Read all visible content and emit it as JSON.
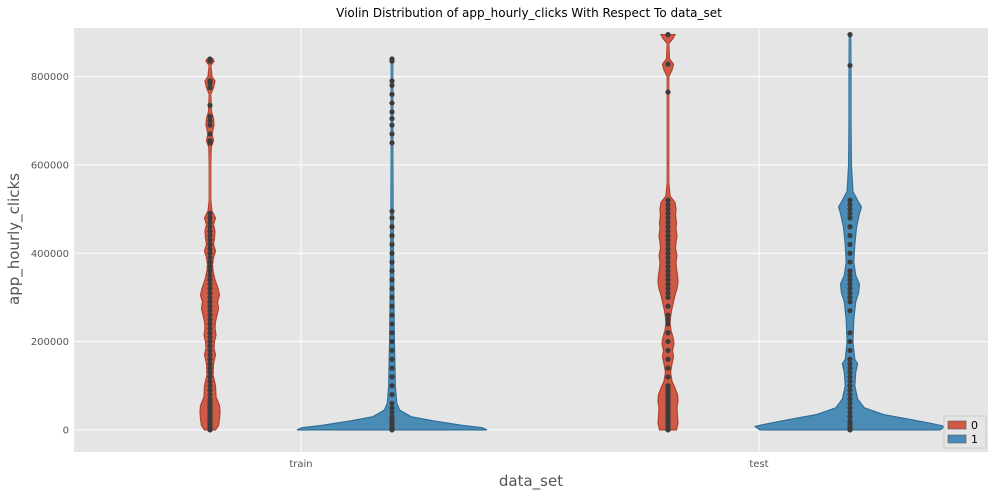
{
  "chart_data": {
    "type": "violin",
    "title": "Violin Distribution of app_hourly_clicks With Respect To data_set",
    "xlabel": "data_set",
    "ylabel": "app_hourly_clicks",
    "categories": [
      "train",
      "test"
    ],
    "ylim": [
      -50000,
      910000
    ],
    "yticks": [
      0,
      200000,
      400000,
      600000,
      800000
    ],
    "ytick_labels": [
      "0",
      "200000",
      "400000",
      "600000",
      "800000"
    ],
    "grid": true,
    "legend": {
      "placement": "bottom-right",
      "entries": [
        {
          "label": "0",
          "color": "#CF5A45"
        },
        {
          "label": "1",
          "color": "#4A8CB5"
        }
      ]
    },
    "colors": {
      "background": "#E5E5E5",
      "grid": "#FFFFFF",
      "point": "#3C3C3C"
    },
    "series": [
      {
        "name": "0",
        "color": "#CF5A45",
        "edge": "#B0412F",
        "violins": [
          {
            "category": "train",
            "range": [
              0,
              840000
            ],
            "profile": [
              [
                0,
                0.55
              ],
              [
                10000,
                0.85
              ],
              [
                25000,
                0.95
              ],
              [
                40000,
                1.0
              ],
              [
                55000,
                0.95
              ],
              [
                75000,
                0.6
              ],
              [
                100000,
                0.55
              ],
              [
                125000,
                0.3
              ],
              [
                150000,
                0.35
              ],
              [
                170000,
                0.55
              ],
              [
                185000,
                0.4
              ],
              [
                200000,
                0.45
              ],
              [
                215000,
                0.6
              ],
              [
                230000,
                0.5
              ],
              [
                245000,
                0.55
              ],
              [
                260000,
                0.7
              ],
              [
                275000,
                0.85
              ],
              [
                290000,
                0.75
              ],
              [
                305000,
                0.95
              ],
              [
                320000,
                0.8
              ],
              [
                340000,
                0.5
              ],
              [
                360000,
                0.3
              ],
              [
                375000,
                0.25
              ],
              [
                390000,
                0.35
              ],
              [
                405000,
                0.55
              ],
              [
                420000,
                0.35
              ],
              [
                435000,
                0.45
              ],
              [
                450000,
                0.5
              ],
              [
                465000,
                0.35
              ],
              [
                480000,
                0.55
              ],
              [
                495000,
                0.2
              ],
              [
                520000,
                0.08
              ],
              [
                560000,
                0.03
              ],
              [
                600000,
                0.05
              ],
              [
                640000,
                0.12
              ],
              [
                655000,
                0.35
              ],
              [
                670000,
                0.2
              ],
              [
                690000,
                0.4
              ],
              [
                705000,
                0.35
              ],
              [
                720000,
                0.15
              ],
              [
                760000,
                0.05
              ],
              [
                775000,
                0.35
              ],
              [
                790000,
                0.5
              ],
              [
                800000,
                0.2
              ],
              [
                825000,
                0.05
              ],
              [
                835000,
                0.4
              ],
              [
                840000,
                0.3
              ]
            ],
            "points": [
              0,
              1000,
              2000,
              3000,
              5000,
              7000,
              9000,
              12000,
              15000,
              18000,
              22000,
              26000,
              30000,
              35000,
              40000,
              45000,
              50000,
              55000,
              60000,
              65000,
              70000,
              80000,
              90000,
              100000,
              110000,
              120000,
              130000,
              140000,
              150000,
              160000,
              170000,
              180000,
              190000,
              200000,
              210000,
              220000,
              230000,
              240000,
              250000,
              260000,
              270000,
              280000,
              290000,
              300000,
              310000,
              320000,
              330000,
              340000,
              350000,
              360000,
              370000,
              380000,
              390000,
              400000,
              410000,
              420000,
              430000,
              440000,
              450000,
              460000,
              470000,
              480000,
              490000,
              650000,
              655000,
              670000,
              690000,
              700000,
              710000,
              735000,
              775000,
              785000,
              790000,
              835000,
              840000
            ]
          },
          {
            "category": "test",
            "range": [
              0,
              895000
            ],
            "profile": [
              [
                0,
                0.85
              ],
              [
                15000,
                1.0
              ],
              [
                30000,
                0.95
              ],
              [
                50000,
                0.9
              ],
              [
                65000,
                1.0
              ],
              [
                80000,
                0.95
              ],
              [
                95000,
                0.7
              ],
              [
                110000,
                0.4
              ],
              [
                130000,
                0.25
              ],
              [
                150000,
                0.4
              ],
              [
                165000,
                0.55
              ],
              [
                180000,
                0.45
              ],
              [
                195000,
                0.6
              ],
              [
                210000,
                0.5
              ],
              [
                225000,
                0.3
              ],
              [
                240000,
                0.2
              ],
              [
                255000,
                0.25
              ],
              [
                270000,
                0.35
              ],
              [
                290000,
                0.55
              ],
              [
                305000,
                0.7
              ],
              [
                320000,
                0.9
              ],
              [
                335000,
                1.0
              ],
              [
                350000,
                0.95
              ],
              [
                365000,
                0.85
              ],
              [
                380000,
                0.8
              ],
              [
                395000,
                0.9
              ],
              [
                410000,
                0.75
              ],
              [
                425000,
                0.8
              ],
              [
                440000,
                0.9
              ],
              [
                455000,
                0.8
              ],
              [
                470000,
                0.85
              ],
              [
                485000,
                0.75
              ],
              [
                500000,
                0.8
              ],
              [
                515000,
                0.7
              ],
              [
                530000,
                0.2
              ],
              [
                560000,
                0.03
              ],
              [
                700000,
                0.02
              ],
              [
                800000,
                0.05
              ],
              [
                815000,
                0.4
              ],
              [
                828000,
                0.55
              ],
              [
                840000,
                0.15
              ],
              [
                875000,
                0.05
              ],
              [
                886000,
                0.5
              ],
              [
                895000,
                0.7
              ]
            ],
            "points": [
              0,
              1000,
              2000,
              3000,
              5000,
              8000,
              11000,
              15000,
              20000,
              25000,
              30000,
              35000,
              40000,
              45000,
              50000,
              55000,
              60000,
              65000,
              70000,
              75000,
              80000,
              85000,
              90000,
              95000,
              100000,
              120000,
              140000,
              160000,
              180000,
              200000,
              220000,
              240000,
              250000,
              260000,
              280000,
              300000,
              310000,
              320000,
              330000,
              340000,
              350000,
              360000,
              370000,
              380000,
              390000,
              400000,
              410000,
              420000,
              430000,
              440000,
              450000,
              460000,
              470000,
              480000,
              490000,
              500000,
              510000,
              520000,
              765000,
              828000,
              895000
            ]
          }
        ]
      },
      {
        "name": "1",
        "color": "#4A8CB5",
        "edge": "#2F6F98",
        "violins": [
          {
            "category": "train",
            "range": [
              0,
              840000
            ],
            "profile": [
              [
                0,
                1.0
              ],
              [
                5000,
                0.95
              ],
              [
                10000,
                0.75
              ],
              [
                20000,
                0.45
              ],
              [
                30000,
                0.2
              ],
              [
                45000,
                0.08
              ],
              [
                60000,
                0.05
              ],
              [
                100000,
                0.035
              ],
              [
                150000,
                0.03
              ],
              [
                200000,
                0.025
              ],
              [
                300000,
                0.02
              ],
              [
                400000,
                0.015
              ],
              [
                500000,
                0.012
              ],
              [
                600000,
                0.01
              ],
              [
                700000,
                0.01
              ],
              [
                800000,
                0.008
              ],
              [
                840000,
                0.006
              ]
            ],
            "points": [
              0,
              1000,
              3000,
              6000,
              10000,
              15000,
              20000,
              25000,
              30000,
              40000,
              50000,
              60000,
              80000,
              100000,
              120000,
              140000,
              160000,
              180000,
              200000,
              220000,
              240000,
              260000,
              280000,
              300000,
              320000,
              340000,
              360000,
              380000,
              400000,
              420000,
              440000,
              460000,
              480000,
              495000,
              650000,
              670000,
              690000,
              705000,
              720000,
              740000,
              760000,
              780000,
              790000,
              835000,
              840000
            ]
          },
          {
            "category": "test",
            "range": [
              0,
              895000
            ],
            "profile": [
              [
                0,
                0.95
              ],
              [
                8000,
                1.0
              ],
              [
                15000,
                0.85
              ],
              [
                25000,
                0.6
              ],
              [
                35000,
                0.35
              ],
              [
                50000,
                0.15
              ],
              [
                70000,
                0.08
              ],
              [
                100000,
                0.05
              ],
              [
                130000,
                0.06
              ],
              [
                150000,
                0.08
              ],
              [
                160000,
                0.05
              ],
              [
                200000,
                0.03
              ],
              [
                250000,
                0.04
              ],
              [
                290000,
                0.06
              ],
              [
                310000,
                0.09
              ],
              [
                330000,
                0.1
              ],
              [
                350000,
                0.06
              ],
              [
                380000,
                0.04
              ],
              [
                420000,
                0.05
              ],
              [
                460000,
                0.07
              ],
              [
                490000,
                0.1
              ],
              [
                505000,
                0.12
              ],
              [
                520000,
                0.08
              ],
              [
                540000,
                0.03
              ],
              [
                600000,
                0.015
              ],
              [
                700000,
                0.01
              ],
              [
                800000,
                0.01
              ],
              [
                895000,
                0.008
              ]
            ],
            "points": [
              0,
              2000,
              5000,
              10000,
              15000,
              20000,
              30000,
              40000,
              50000,
              60000,
              70000,
              80000,
              90000,
              100000,
              110000,
              120000,
              130000,
              140000,
              150000,
              160000,
              180000,
              200000,
              220000,
              270000,
              290000,
              300000,
              310000,
              320000,
              330000,
              340000,
              350000,
              360000,
              380000,
              400000,
              420000,
              440000,
              460000,
              480000,
              490000,
              500000,
              510000,
              520000,
              825000,
              895000
            ]
          }
        ]
      }
    ]
  }
}
